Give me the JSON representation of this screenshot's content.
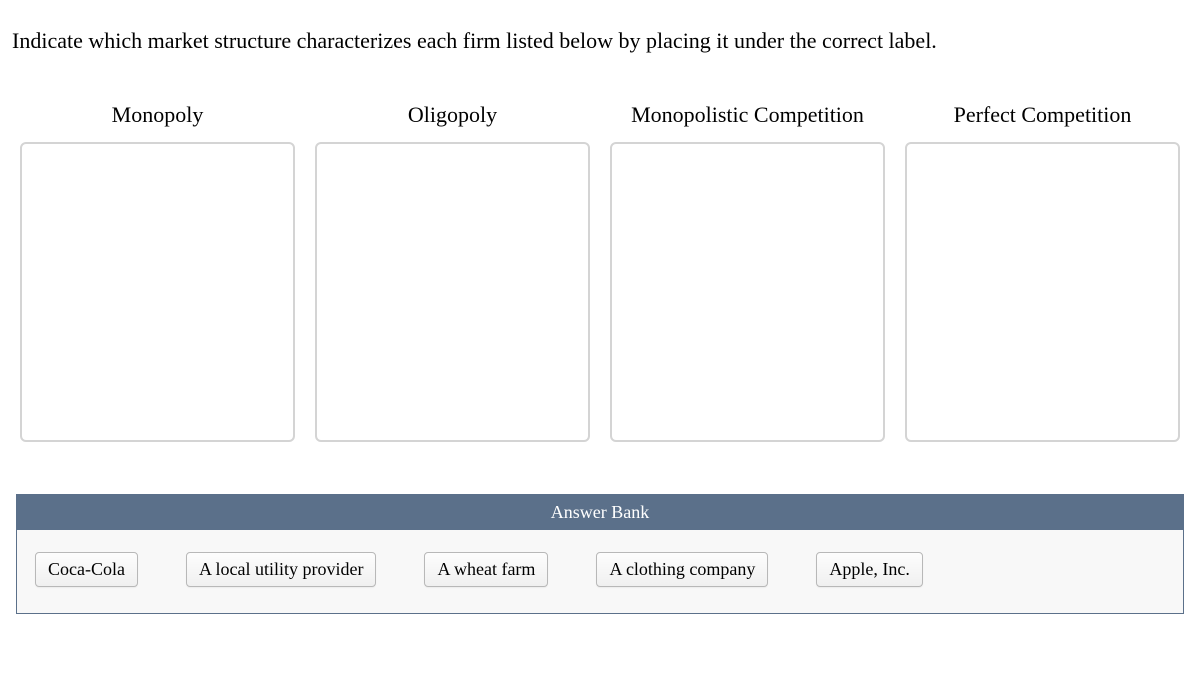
{
  "prompt": "Indicate which market structure characterizes each firm listed below by placing it under the correct label.",
  "zones": [
    {
      "label": "Monopoly"
    },
    {
      "label": "Oligopoly"
    },
    {
      "label": "Monopolistic Competition"
    },
    {
      "label": "Perfect Competition"
    }
  ],
  "answer_bank": {
    "title": "Answer Bank",
    "items": [
      "Coca-Cola",
      "A local utility provider",
      "A wheat farm",
      "A clothing company",
      "Apple, Inc."
    ]
  },
  "colors": {
    "bank_header_bg": "#5b708a",
    "bank_header_text": "#ffffff",
    "bank_body_bg": "#f8f8f8",
    "zone_border": "#d4d4d4",
    "tile_border": "#b8b8b8"
  }
}
